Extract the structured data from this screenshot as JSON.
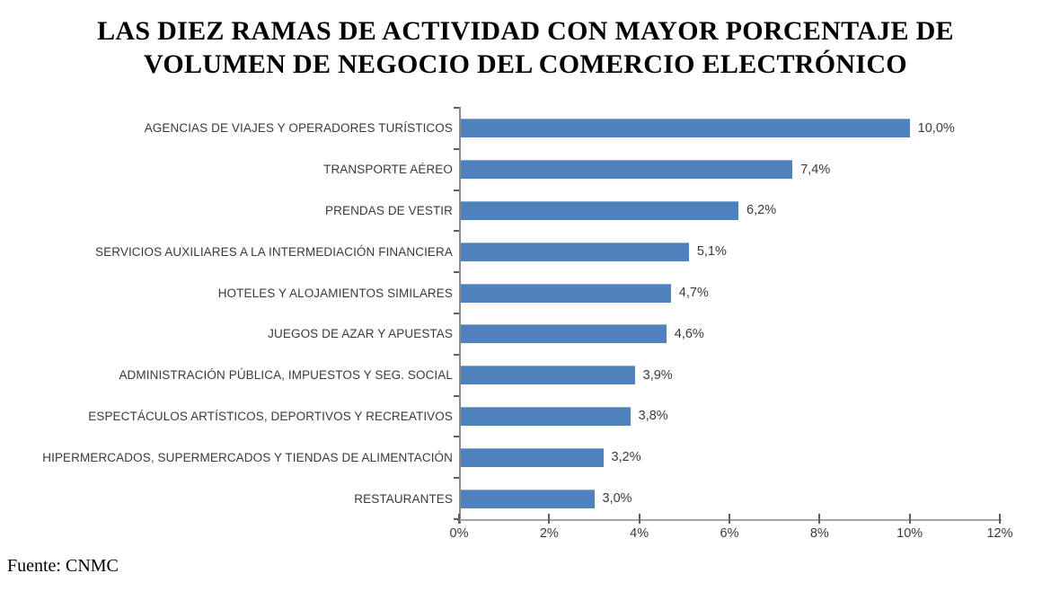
{
  "chart_data": {
    "type": "bar",
    "orientation": "horizontal",
    "title": "LAS DIEZ RAMAS DE ACTIVIDAD CON MAYOR PORCENTAJE DE VOLUMEN DE NEGOCIO DEL COMERCIO ELECTRÓNICO",
    "title_lines": [
      "LAS DIEZ RAMAS DE ACTIVIDAD CON MAYOR PORCENTAJE DE",
      "VOLUMEN DE NEGOCIO DEL COMERCIO ELECTRÓNICO"
    ],
    "categories": [
      "AGENCIAS DE VIAJES Y OPERADORES TURÍSTICOS",
      "TRANSPORTE AÉREO",
      "PRENDAS DE VESTIR",
      "SERVICIOS AUXILIARES A LA INTERMEDIACIÓN FINANCIERA",
      "HOTELES  Y ALOJAMIENTOS SIMILARES",
      "JUEGOS DE AZAR Y APUESTAS",
      "ADMINISTRACIÓN PÚBLICA, IMPUESTOS Y SEG. SOCIAL",
      "ESPECTÁCULOS ARTÍSTICOS, DEPORTIVOS Y RECREATIVOS",
      "HIPERMERCADOS, SUPERMERCADOS Y TIENDAS DE ALIMENTACIÓN",
      "RESTAURANTES"
    ],
    "values": [
      10.0,
      7.4,
      6.2,
      5.1,
      4.7,
      4.6,
      3.9,
      3.8,
      3.2,
      3.0
    ],
    "value_labels": [
      "10,0%",
      "7,4%",
      "6,2%",
      "5,1%",
      "4,7%",
      "4,6%",
      "3,9%",
      "3,8%",
      "3,2%",
      "3,0%"
    ],
    "xlabel": "",
    "ylabel": "",
    "xlim": [
      0,
      12
    ],
    "x_ticks": [
      "0%",
      "2%",
      "4%",
      "6%",
      "8%",
      "10%",
      "12%"
    ],
    "x_tick_values": [
      0,
      2,
      4,
      6,
      8,
      10,
      12
    ],
    "grid": false,
    "legend": false,
    "bar_color": "#4F81BD"
  },
  "source": "Fuente: CNMC",
  "colors": {
    "bar": "#4F81BD",
    "y_axis_line": "#8a8a8a",
    "x_axis_line": "#a3a3a3",
    "tick": "#5f5f5f",
    "label_text": "#3a3a3a",
    "title_text": "#000000"
  }
}
